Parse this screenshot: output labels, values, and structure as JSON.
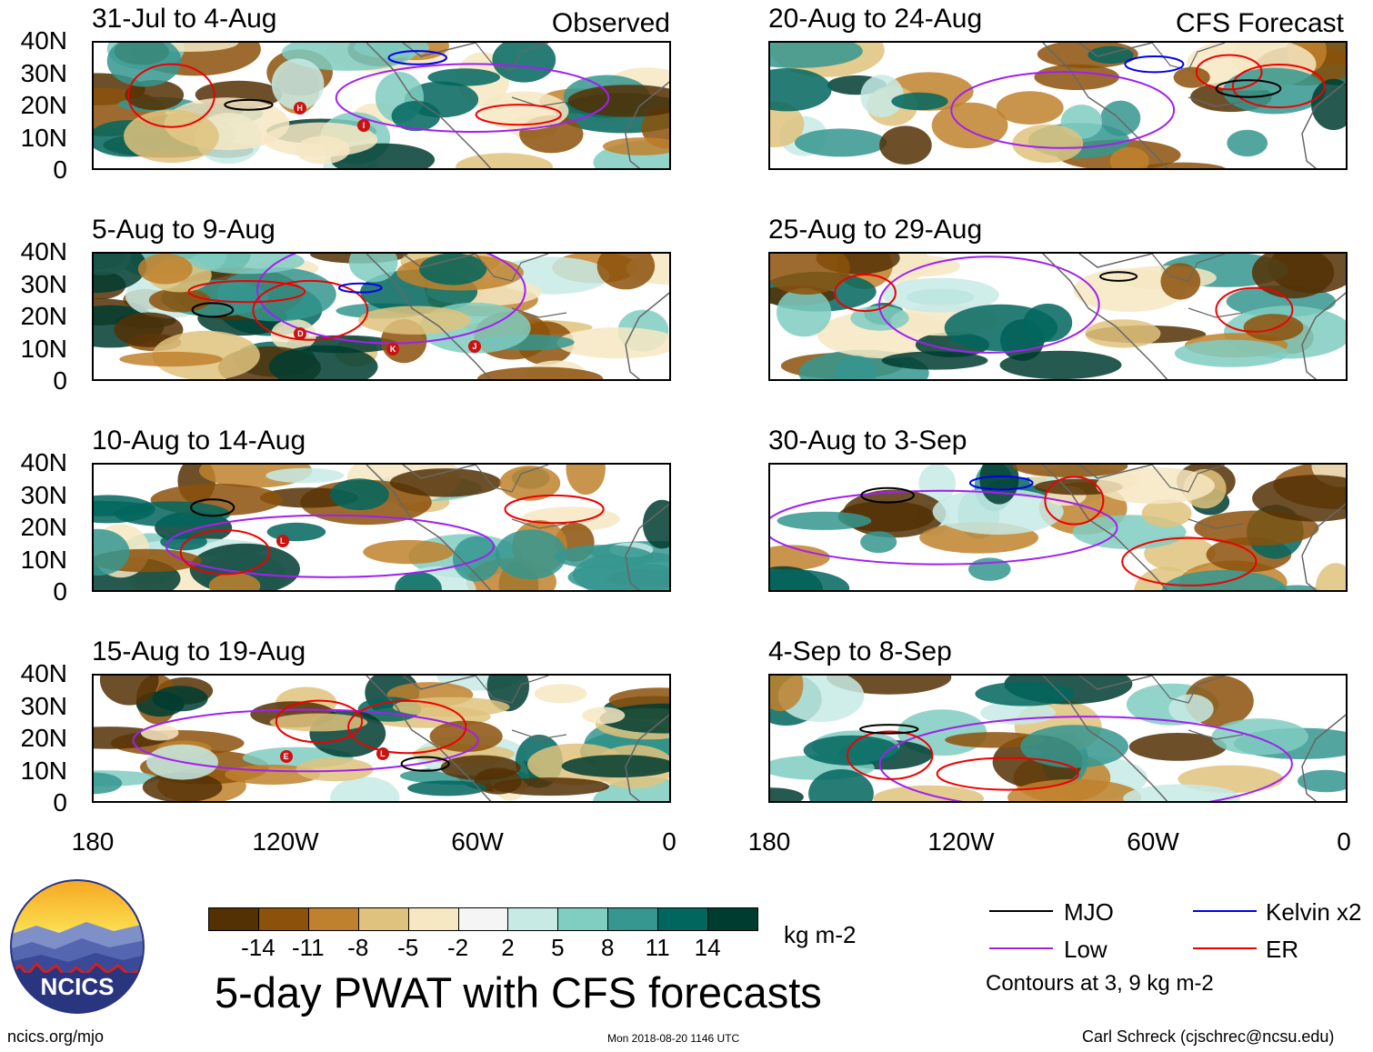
{
  "panels": [
    {
      "title": "31-Jul to 4-Aug",
      "corner": "Observed"
    },
    {
      "title": "5-Aug to 9-Aug",
      "corner": ""
    },
    {
      "title": "10-Aug to 14-Aug",
      "corner": ""
    },
    {
      "title": "15-Aug to 19-Aug",
      "corner": ""
    },
    {
      "title": "20-Aug to 24-Aug",
      "corner": "CFS Forecast"
    },
    {
      "title": "25-Aug to 29-Aug",
      "corner": ""
    },
    {
      "title": "30-Aug to 3-Sep",
      "corner": ""
    },
    {
      "title": "4-Sep to 8-Sep",
      "corner": ""
    }
  ],
  "storm_markers": {
    "p0": [
      "H",
      "I"
    ],
    "p1": [
      "D",
      "K",
      "J"
    ],
    "p2": [
      "L"
    ],
    "p3": [
      "E",
      "L"
    ]
  },
  "y_axis": [
    "40N",
    "30N",
    "20N",
    "10N",
    "0"
  ],
  "x_axis": [
    "180",
    "120W",
    "60W",
    "0"
  ],
  "colorbar": {
    "labels": [
      "-14",
      "-11",
      "-8",
      "-5",
      "-2",
      "2",
      "5",
      "8",
      "11",
      "14"
    ],
    "colors": [
      "#543005",
      "#8c510a",
      "#bf812d",
      "#dfc27d",
      "#f6e8c3",
      "#f5f5f5",
      "#c7eae5",
      "#80cdc1",
      "#35978f",
      "#01665e",
      "#003c30"
    ],
    "units": "kg m-2"
  },
  "title": "5-day PWAT with CFS forecasts",
  "legend": {
    "items": [
      {
        "label": "MJO",
        "color": "#000000"
      },
      {
        "label": "Kelvin x2",
        "color": "#0000ee"
      },
      {
        "label": "Low",
        "color": "#a020f0"
      },
      {
        "label": "ER",
        "color": "#ee0000"
      }
    ],
    "note": "Contours at 3, 9 kg m-2"
  },
  "logo": {
    "text": "NCICS"
  },
  "footer": {
    "url": "ncics.org/mjo",
    "timestamp": "Mon 2018-08-20 1146 UTC",
    "credit": "Carl Schreck (cjschrec@ncsu.edu)"
  }
}
